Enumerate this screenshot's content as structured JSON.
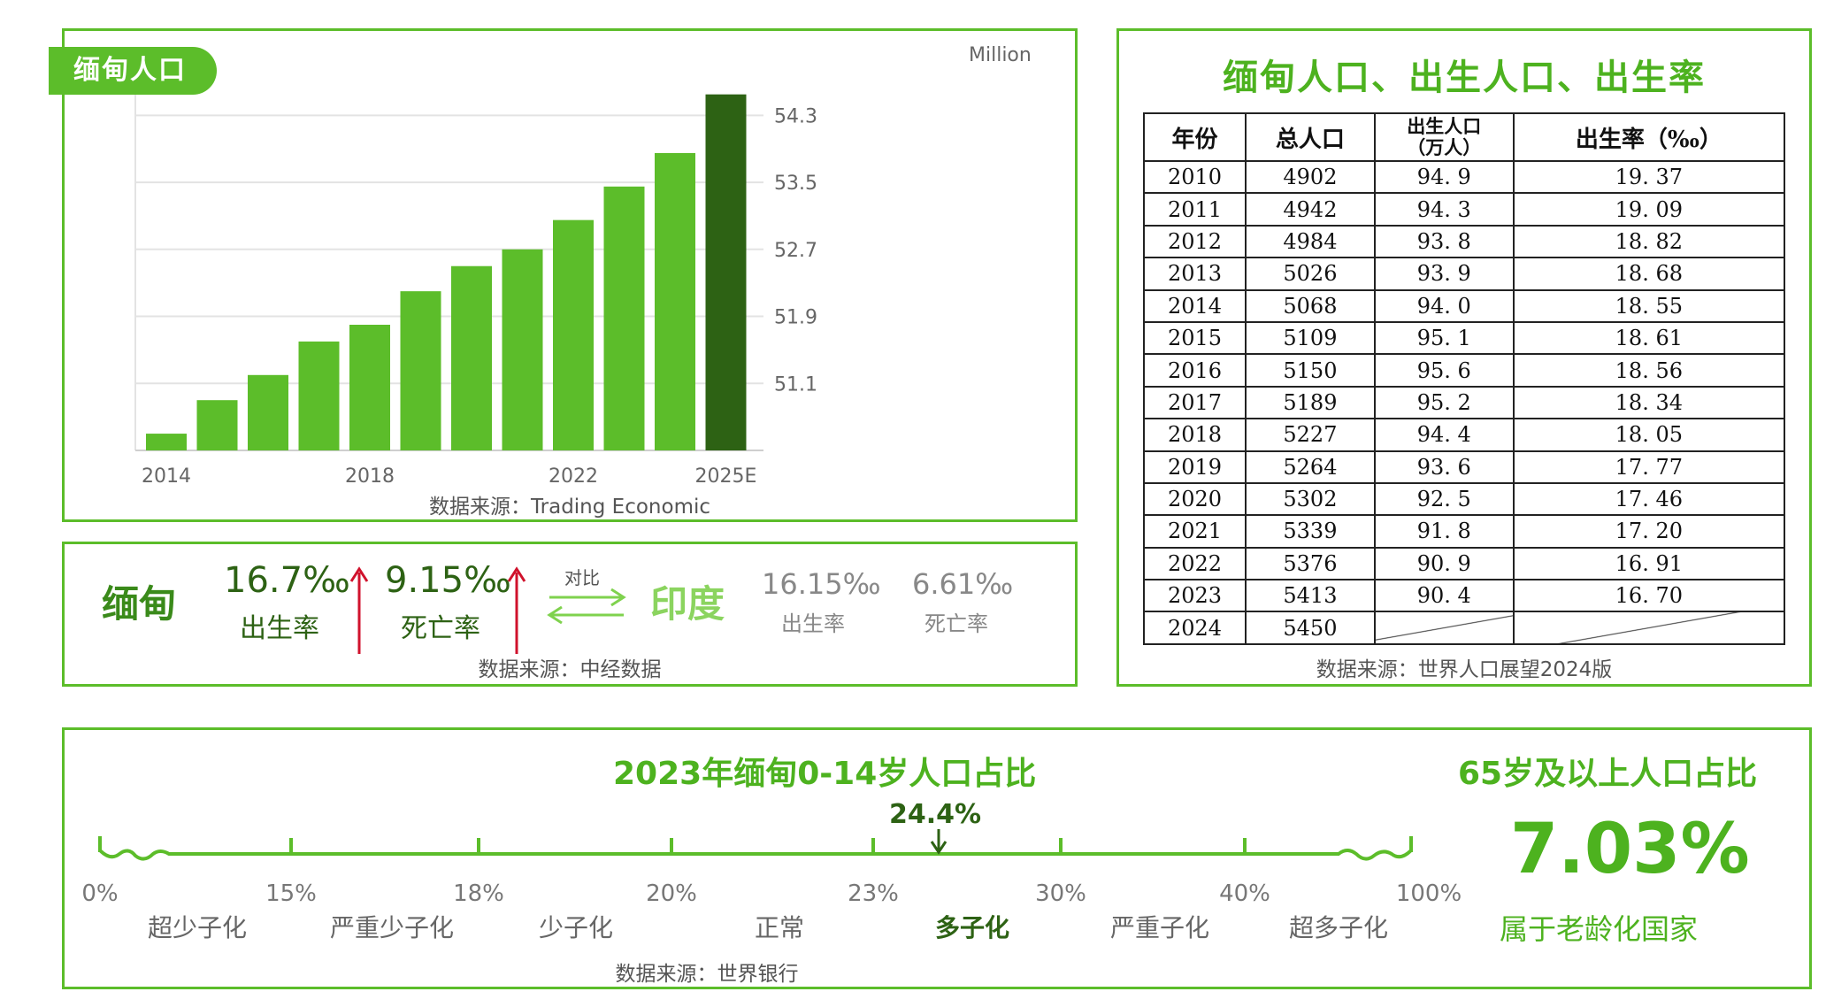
{
  "chart_panel": {
    "tag": "缅甸人口",
    "unit_label": "Million",
    "source": "数据来源：Trading Economic"
  },
  "chart_data": {
    "type": "bar",
    "categories": [
      "2014",
      "2015",
      "2016",
      "2017",
      "2018",
      "2019",
      "2020",
      "2021",
      "2022",
      "2023",
      "2024",
      "2025E"
    ],
    "x_tick_labels": [
      "2014",
      "2018",
      "2022",
      "2025E"
    ],
    "values": [
      50.5,
      50.9,
      51.2,
      51.6,
      51.8,
      52.2,
      52.5,
      52.7,
      53.05,
      53.45,
      53.85,
      54.55
    ],
    "y_ticks": [
      51.1,
      51.9,
      52.7,
      53.5,
      54.3
    ],
    "ylim": [
      50.3,
      54.8
    ],
    "colors": {
      "bar": "#5cbd2a",
      "highlight": "#2d6214",
      "highlight_category": "2025E"
    },
    "grid": true
  },
  "compare": {
    "left_country": "缅甸",
    "birth_rate": "16.7‰",
    "birth_label": "出生率",
    "death_rate": "9.15‰",
    "death_label": "死亡率",
    "vs_label": "对比",
    "right_country": "印度",
    "right_birth_rate": "16.15‰",
    "right_birth_label": "出生率",
    "right_death_rate": "6.61‰",
    "right_death_label": "死亡率",
    "source": "数据来源：中经数据"
  },
  "table": {
    "title": "缅甸人口、出生人口、出生率",
    "headers": [
      "年份",
      "总人口",
      "出生人口\n（万人）",
      "出生率（‰）"
    ],
    "rows": [
      [
        "2010",
        "4902",
        "94. 9",
        "19. 37"
      ],
      [
        "2011",
        "4942",
        "94. 3",
        "19. 09"
      ],
      [
        "2012",
        "4984",
        "93. 8",
        "18. 82"
      ],
      [
        "2013",
        "5026",
        "93. 9",
        "18. 68"
      ],
      [
        "2014",
        "5068",
        "94. 0",
        "18. 55"
      ],
      [
        "2015",
        "5109",
        "95. 1",
        "18. 61"
      ],
      [
        "2016",
        "5150",
        "95. 6",
        "18. 56"
      ],
      [
        "2017",
        "5189",
        "95. 2",
        "18. 34"
      ],
      [
        "2018",
        "5227",
        "94. 4",
        "18. 05"
      ],
      [
        "2019",
        "5264",
        "93. 6",
        "17. 77"
      ],
      [
        "2020",
        "5302",
        "92. 5",
        "17. 46"
      ],
      [
        "2021",
        "5339",
        "91. 8",
        "17. 20"
      ],
      [
        "2022",
        "5376",
        "90. 9",
        "16. 91"
      ],
      [
        "2023",
        "5413",
        "90. 4",
        "16. 70"
      ],
      [
        "2024",
        "5450",
        "",
        ""
      ]
    ],
    "source": "数据来源：世界人口展望2024版"
  },
  "age": {
    "title": "2023年缅甸0-14岁人口占比",
    "marker_value": "24.4%",
    "ticks": [
      "0%",
      "15%",
      "18%",
      "20%",
      "23%",
      "30%",
      "40%",
      "100%"
    ],
    "categories": [
      "超少子化",
      "严重少子化",
      "少子化",
      "正常",
      "多子化",
      "严重子化",
      "超多子化"
    ],
    "highlight_category": "多子化",
    "elderly_title": "65岁及以上人口占比",
    "elderly_value": "7.03%",
    "elderly_note": "属于老龄化国家",
    "source": "数据来源：世界银行"
  }
}
